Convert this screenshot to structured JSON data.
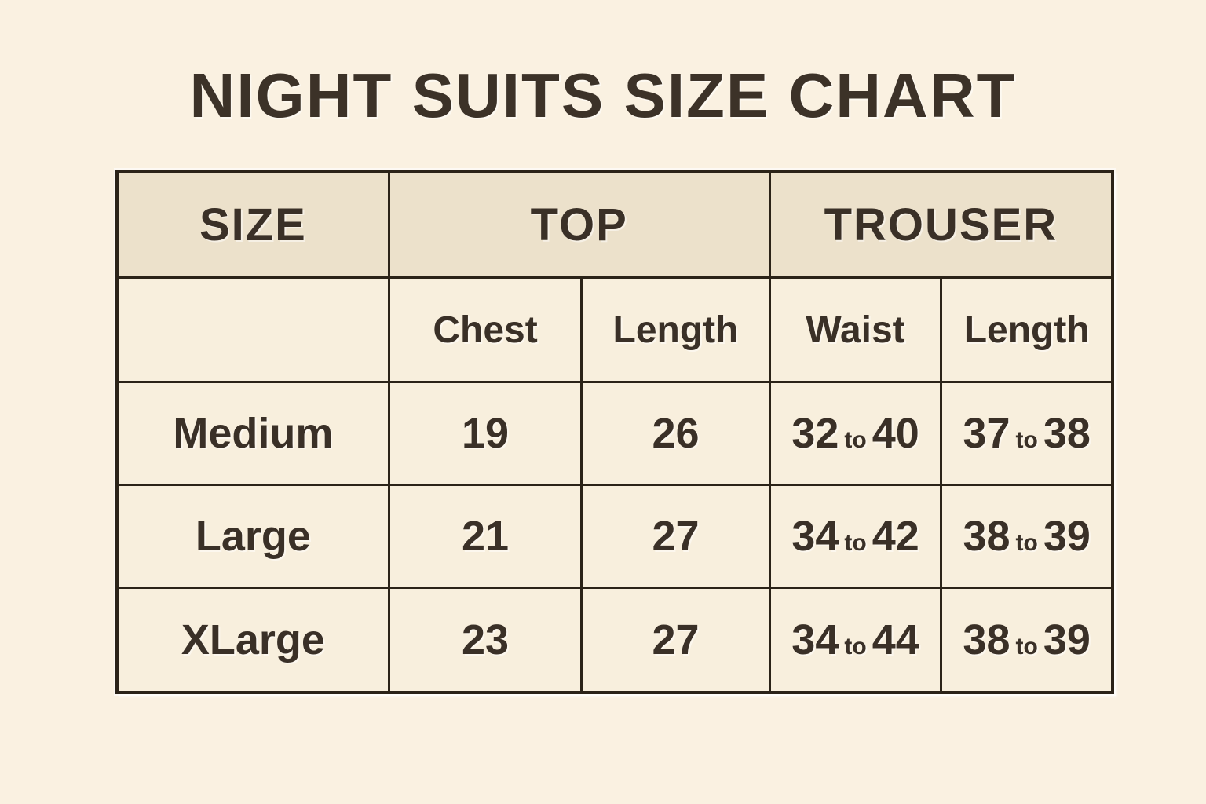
{
  "page": {
    "title": "NIGHT SUITS SIZE CHART"
  },
  "colors": {
    "page_background": "#faf1e1",
    "header_row_background": "#ece1cb",
    "cell_background": "#f8efdd",
    "border": "#2b2318",
    "text": "#3a3027"
  },
  "chart_data": {
    "type": "table",
    "title": "NIGHT SUITS SIZE CHART",
    "column_groups": [
      "SIZE",
      "TOP",
      "TROUSER"
    ],
    "columns": [
      "Size",
      "Top Chest",
      "Top Length",
      "Trouser Waist",
      "Trouser Length"
    ],
    "rows": [
      [
        "Medium",
        "19",
        "26",
        "32 to 40",
        "37 to 38"
      ],
      [
        "Large",
        "21",
        "27",
        "34 to 42",
        "38 to 39"
      ],
      [
        "XLarge",
        "23",
        "27",
        "34 to 44",
        "38 to 39"
      ]
    ]
  },
  "table": {
    "header": {
      "size": "SIZE",
      "top": "TOP",
      "trouser": "TROUSER"
    },
    "subheader": {
      "size": "",
      "chest": "Chest",
      "top_length": "Length",
      "waist": "Waist",
      "trouser_length": "Length"
    },
    "rows": [
      {
        "size": "Medium",
        "chest": "19",
        "top_length": "26",
        "waist": {
          "min": "32",
          "sep": "to",
          "max": "40"
        },
        "trouser_length": {
          "min": "37",
          "sep": "to",
          "max": "38"
        }
      },
      {
        "size": "Large",
        "chest": "21",
        "top_length": "27",
        "waist": {
          "min": "34",
          "sep": "to",
          "max": "42"
        },
        "trouser_length": {
          "min": "38",
          "sep": "to",
          "max": "39"
        }
      },
      {
        "size": "XLarge",
        "chest": "23",
        "top_length": "27",
        "waist": {
          "min": "34",
          "sep": "to",
          "max": "44"
        },
        "trouser_length": {
          "min": "38",
          "sep": "to",
          "max": "39"
        }
      }
    ]
  }
}
